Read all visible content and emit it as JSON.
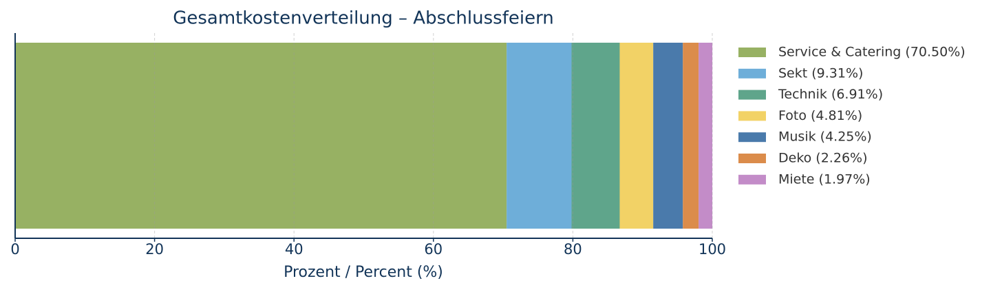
{
  "chart_data": {
    "type": "bar",
    "orientation": "horizontal",
    "stacked": true,
    "title": "Gesamtkostenverteilung – Abschlussfeiern",
    "xlabel": "Prozent / Percent (%)",
    "xlim": [
      0,
      100
    ],
    "xticks": [
      0,
      20,
      40,
      60,
      80,
      100
    ],
    "grid": true,
    "legend": "right",
    "series": [
      {
        "name": "Service & Catering (70.50%)",
        "color": "#97b163",
        "values": [
          70.5
        ]
      },
      {
        "name": "Sekt (9.31%)",
        "color": "#6eaed9",
        "values": [
          9.31
        ]
      },
      {
        "name": "Technik (6.91%)",
        "color": "#5fa58b",
        "values": [
          6.91
        ]
      },
      {
        "name": "Foto (4.81%)",
        "color": "#f2d266",
        "values": [
          4.81
        ]
      },
      {
        "name": "Musik (4.25%)",
        "color": "#4a7aab",
        "values": [
          4.25
        ]
      },
      {
        "name": "Deko (2.26%)",
        "color": "#db8c4b",
        "values": [
          2.26
        ]
      },
      {
        "name": "Miete (1.97%)",
        "color": "#c38cc8",
        "values": [
          1.97
        ]
      }
    ]
  }
}
